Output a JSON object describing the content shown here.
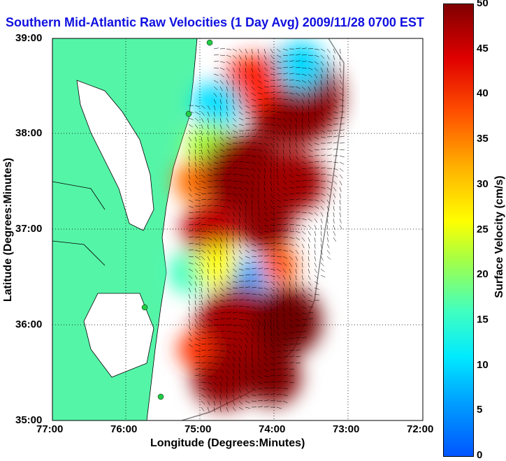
{
  "title": "Southern Mid-Atlantic Raw Velocities (1 Day Avg) 2009/11/28 0700 EST",
  "xlabel": "Longitude (Degrees:Minutes)",
  "ylabel": "Latitude (Degrees:Minutes)",
  "x_ticks": [
    "77:00",
    "76:00",
    "75:00",
    "74:00",
    "73:00",
    "72:00"
  ],
  "y_ticks": [
    "39:00",
    "38:00",
    "37:00",
    "36:00",
    "35:00"
  ],
  "colorbar": {
    "label": "Surface Velocity (cm/s)",
    "ticks": [
      "0",
      "5",
      "10",
      "15",
      "20",
      "25",
      "30",
      "35",
      "40",
      "45",
      "50"
    ],
    "range": [
      0,
      50
    ]
  },
  "colors": {
    "land": "#55f5a8",
    "water": "#ffffff",
    "title": "#1010e0",
    "arrows": "#000000",
    "station": "#22cc44"
  }
}
